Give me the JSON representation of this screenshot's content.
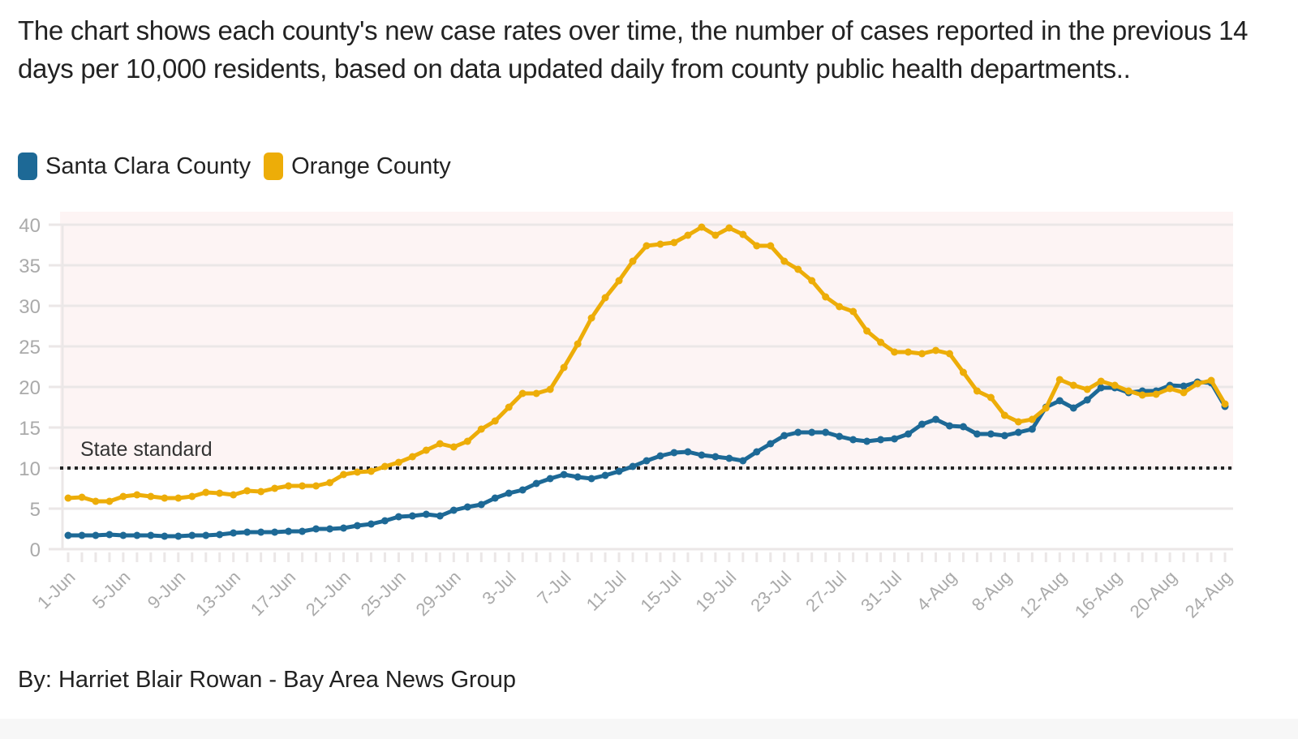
{
  "subtitle": "The chart shows each county's new case rates over time, the number of cases reported in the previous 14 days per 10,000 residents, based on data updated daily from county public health departments..",
  "credit": "By: Harriet Blair Rowan - Bay Area News Group",
  "colors": {
    "santa_clara": "#1d6996",
    "orange": "#edad08",
    "shade": "#fdf4f4",
    "grid": "#ebe7e7",
    "standard_line": "#222222"
  },
  "chart_data": {
    "type": "line",
    "title": "",
    "xlabel": "",
    "ylabel": "",
    "ylim": [
      0,
      40
    ],
    "yticks": [
      0,
      5,
      10,
      15,
      20,
      25,
      30,
      35,
      40
    ],
    "x_start": "1-Jun",
    "x_end": "24-Aug",
    "xtick_labels": [
      "1-Jun",
      "5-Jun",
      "9-Jun",
      "13-Jun",
      "17-Jun",
      "21-Jun",
      "25-Jun",
      "29-Jun",
      "3-Jul",
      "7-Jul",
      "11-Jul",
      "15-Jul",
      "19-Jul",
      "23-Jul",
      "27-Jul",
      "31-Jul",
      "4-Aug",
      "8-Aug",
      "12-Aug",
      "16-Aug",
      "20-Aug",
      "24-Aug"
    ],
    "xtick_label_every_days": 4,
    "grid": true,
    "legend_position": "top-left",
    "shaded_region": {
      "from": 10,
      "to": 40,
      "label": ""
    },
    "annotations": [
      {
        "text": "State standard",
        "y": 10,
        "style": "dotted"
      }
    ],
    "series": [
      {
        "name": "Santa Clara County",
        "values": [
          1.7,
          1.7,
          1.7,
          1.8,
          1.7,
          1.7,
          1.7,
          1.6,
          1.6,
          1.7,
          1.7,
          1.8,
          2.0,
          2.1,
          2.1,
          2.1,
          2.2,
          2.2,
          2.5,
          2.5,
          2.6,
          2.9,
          3.1,
          3.5,
          4.0,
          4.1,
          4.3,
          4.1,
          4.8,
          5.2,
          5.5,
          6.3,
          6.9,
          7.3,
          8.1,
          8.7,
          9.2,
          8.9,
          8.7,
          9.1,
          9.6,
          10.2,
          10.9,
          11.5,
          11.9,
          12.0,
          11.6,
          11.4,
          11.2,
          10.9,
          12.0,
          13.0,
          14.0,
          14.4,
          14.4,
          14.4,
          13.9,
          13.5,
          13.3,
          13.5,
          13.6,
          14.2,
          15.4,
          16.0,
          15.2,
          15.1,
          14.2,
          14.2,
          14.0,
          14.4,
          14.8,
          17.5,
          18.3,
          17.4,
          18.4,
          19.9,
          19.9,
          19.3,
          19.5,
          19.5,
          20.2,
          20.1,
          20.6,
          20.5,
          17.6
        ]
      },
      {
        "name": "Orange County",
        "values": [
          6.3,
          6.4,
          5.9,
          5.9,
          6.5,
          6.7,
          6.5,
          6.3,
          6.3,
          6.5,
          7.0,
          6.9,
          6.7,
          7.2,
          7.1,
          7.5,
          7.8,
          7.8,
          7.8,
          8.2,
          9.2,
          9.5,
          9.6,
          10.2,
          10.7,
          11.4,
          12.2,
          13.0,
          12.6,
          13.3,
          14.8,
          15.8,
          17.5,
          19.2,
          19.2,
          19.7,
          22.4,
          25.3,
          28.5,
          31.0,
          33.1,
          35.5,
          37.4,
          37.6,
          37.8,
          38.7,
          39.7,
          38.7,
          39.6,
          38.8,
          37.4,
          37.4,
          35.5,
          34.5,
          33.1,
          31.1,
          29.9,
          29.3,
          26.9,
          25.5,
          24.3,
          24.3,
          24.1,
          24.5,
          24.1,
          21.8,
          19.5,
          18.7,
          16.5,
          15.7,
          16.0,
          17.4,
          20.9,
          20.2,
          19.7,
          20.7,
          20.2,
          19.5,
          19.0,
          19.1,
          19.8,
          19.3,
          20.4,
          20.8,
          17.9
        ]
      }
    ]
  },
  "legend": {
    "items": [
      {
        "label": "Santa Clara County",
        "color": "#1d6996"
      },
      {
        "label": "Orange County",
        "color": "#edad08"
      }
    ]
  }
}
